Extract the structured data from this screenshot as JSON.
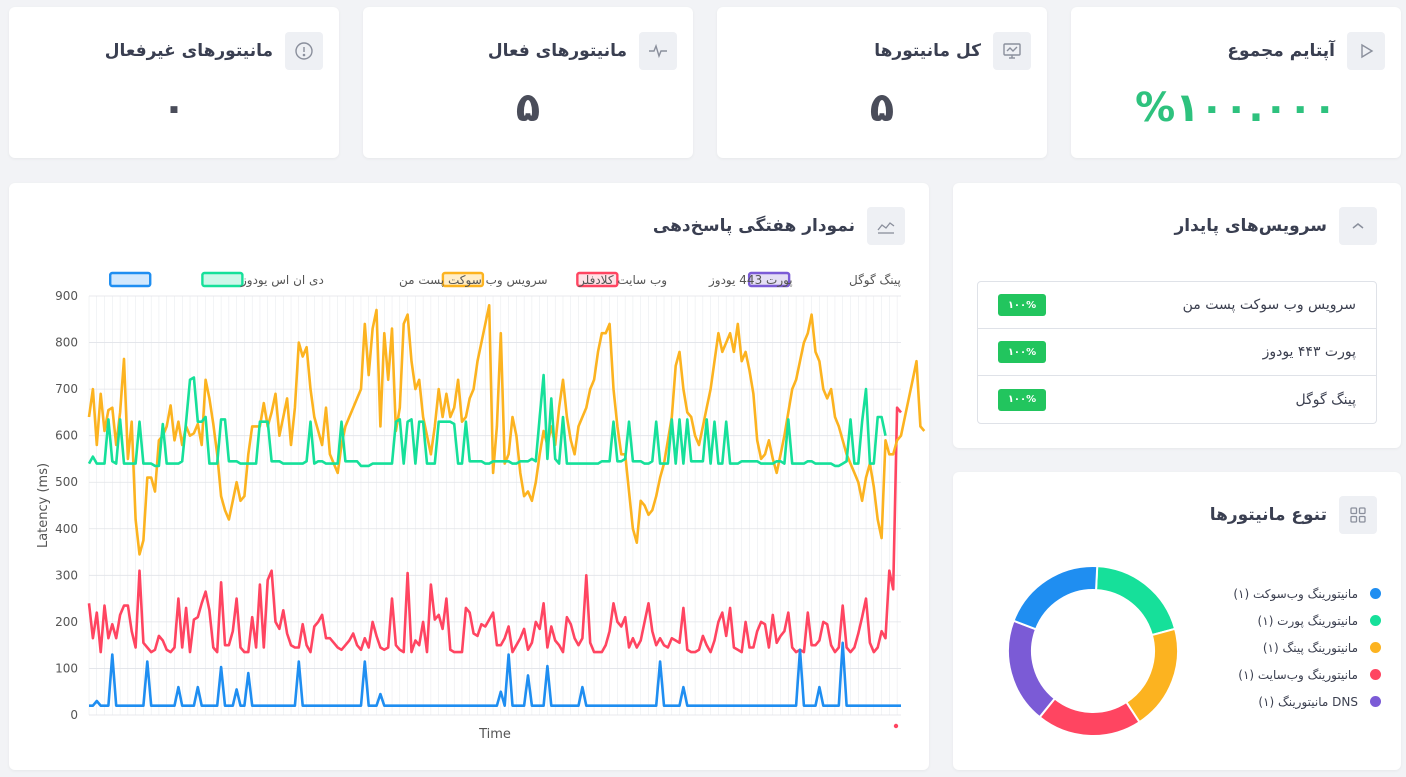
{
  "stats": [
    {
      "title": "آپتایم مجموع",
      "value": "%۱۰۰.۰۰۰",
      "icon": "play-icon"
    },
    {
      "title": "کل مانیتورها",
      "value": "۵",
      "icon": "monitor-icon"
    },
    {
      "title": "مانیتورهای فعال",
      "value": "۵",
      "icon": "pulse-icon"
    },
    {
      "title": "مانیتورهای غیرفعال",
      "value": "۰",
      "icon": "alert-circle-icon"
    }
  ],
  "stable_services": {
    "title": "سرویس‌های پایدار",
    "items": [
      {
        "name": "سرویس وب سوکت پست من",
        "badge": "۱۰۰%"
      },
      {
        "name": "پورت ۴۴۳ یودوز",
        "badge": "۱۰۰%"
      },
      {
        "name": "پینگ گوگل",
        "badge": "۱۰۰%"
      }
    ]
  },
  "diversity": {
    "title": "تنوع مانیتورها",
    "legend": [
      {
        "label": "مانیتورینگ وب‌سوکت (۱)",
        "color": "#1f8ef1"
      },
      {
        "label": "مانیتورینگ پورت (۱)",
        "color": "#16e09a"
      },
      {
        "label": "مانیتورینگ پینگ (۱)",
        "color": "#fcb320"
      },
      {
        "label": "مانیتورینگ وب‌سایت (۱)",
        "color": "#ff4561"
      },
      {
        "label": "DNS مانیتورینگ (۱)",
        "color": "#7b5bd6"
      }
    ],
    "donut_values": [
      1,
      1,
      1,
      1,
      1
    ]
  },
  "weekly_chart": {
    "title": "نمودار هفتگی پاسخ‌دهی"
  },
  "chart_data": {
    "type": "line",
    "xlabel": "Time",
    "ylabel": "Latency (ms)",
    "ylim": [
      0,
      900
    ],
    "yticks": [
      0,
      100,
      200,
      300,
      400,
      500,
      600,
      700,
      800,
      900
    ],
    "legend_position": "top",
    "grid": true,
    "points": 210,
    "series": [
      {
        "name": "دی ان اس یودوز",
        "color": "#1f8ef1",
        "base": 20,
        "spikes": [
          [
            2,
            30
          ],
          [
            6,
            130
          ],
          [
            15,
            115
          ],
          [
            23,
            60
          ],
          [
            28,
            60
          ],
          [
            34,
            103
          ],
          [
            38,
            55
          ],
          [
            41,
            90
          ],
          [
            54,
            115
          ],
          [
            71,
            115
          ],
          [
            75,
            45
          ],
          [
            106,
            50
          ],
          [
            108,
            130
          ],
          [
            113,
            85
          ],
          [
            118,
            105
          ],
          [
            127,
            60
          ],
          [
            147,
            115
          ],
          [
            153,
            60
          ],
          [
            183,
            140
          ],
          [
            188,
            60
          ],
          [
            194,
            155
          ]
        ]
      },
      {
        "name": "سرویس وب سوکت پست من",
        "color": "#16e09a",
        "samples": [
          540,
          555,
          540,
          540,
          540,
          635,
          545,
          540,
          635,
          540,
          540,
          540,
          540,
          630,
          540,
          540,
          540,
          535,
          535,
          625,
          540,
          540,
          540,
          540,
          545,
          630,
          720,
          725,
          630,
          630,
          640,
          540,
          540,
          540,
          635,
          635,
          545,
          545,
          545,
          540,
          540,
          540,
          540,
          540,
          630,
          630,
          630,
          545,
          545,
          545,
          540,
          540,
          540,
          540,
          540,
          540,
          545,
          630,
          540,
          545,
          545,
          540,
          540,
          540,
          540,
          630,
          545,
          545,
          545,
          545,
          535,
          535,
          535,
          540,
          540,
          540,
          540,
          540,
          540,
          630,
          635,
          540,
          630,
          635,
          540,
          630,
          630,
          540,
          540,
          540,
          630,
          630,
          630,
          630,
          625,
          540,
          540,
          630,
          545,
          545,
          545,
          545,
          540,
          540,
          545,
          545,
          545,
          545,
          545,
          540,
          540,
          545,
          545,
          545,
          550,
          545,
          640,
          730,
          550,
          680,
          550,
          540,
          640,
          540,
          540,
          540,
          540,
          540,
          540,
          540,
          540,
          540,
          545,
          545,
          545,
          630,
          545,
          545,
          550,
          630,
          545,
          545,
          545,
          540,
          540,
          545,
          630,
          540,
          540,
          540,
          635,
          540,
          635,
          540,
          635,
          545,
          545,
          545,
          545,
          635,
          540,
          630,
          540,
          540,
          630,
          540,
          540,
          540,
          545,
          545,
          545,
          545,
          545,
          540,
          540,
          540,
          540,
          545,
          545,
          540,
          635,
          540,
          540,
          540,
          540,
          545,
          545,
          540,
          540,
          540,
          540,
          540,
          535,
          535,
          540,
          545,
          635,
          540,
          540,
          630,
          700,
          540,
          540,
          640,
          640,
          600
        ]
      },
      {
        "name": "وب سایت کلادفلر",
        "color": "#fcb320",
        "samples": [
          640,
          700,
          580,
          690,
          610,
          655,
          660,
          580,
          650,
          765,
          550,
          630,
          420,
          345,
          375,
          510,
          510,
          480,
          590,
          600,
          620,
          665,
          590,
          630,
          580,
          620,
          600,
          605,
          625,
          580,
          720,
          680,
          625,
          560,
          470,
          440,
          420,
          460,
          500,
          460,
          470,
          560,
          620,
          620,
          620,
          670,
          620,
          650,
          690,
          600,
          640,
          680,
          580,
          660,
          800,
          770,
          790,
          700,
          640,
          610,
          580,
          660,
          560,
          540,
          520,
          580,
          620,
          640,
          660,
          680,
          700,
          840,
          730,
          830,
          870,
          620,
          820,
          720,
          830,
          610,
          660,
          840,
          860,
          760,
          700,
          720,
          640,
          600,
          560,
          620,
          700,
          640,
          690,
          640,
          660,
          720,
          630,
          640,
          680,
          700,
          760,
          800,
          840,
          880,
          520,
          620,
          820,
          540,
          560,
          640,
          600,
          520,
          470,
          480,
          460,
          500,
          560,
          610,
          580,
          620,
          580,
          660,
          720,
          640,
          590,
          560,
          620,
          640,
          660,
          700,
          720,
          780,
          820,
          820,
          840,
          700,
          620,
          560,
          560,
          480,
          400,
          370,
          460,
          450,
          430,
          440,
          470,
          510,
          540,
          590,
          640,
          750,
          780,
          700,
          650,
          640,
          600,
          580,
          620,
          660,
          700,
          760,
          820,
          780,
          800,
          820,
          780,
          840,
          760,
          780,
          740,
          690,
          590,
          550,
          560,
          590,
          550,
          520,
          560,
          600,
          650,
          700,
          720,
          760,
          800,
          820,
          860,
          780,
          760,
          700,
          680,
          700,
          640,
          620,
          590,
          560,
          540,
          520,
          500,
          460,
          510,
          540,
          490,
          420,
          380,
          590,
          560,
          560,
          590,
          600,
          640,
          680,
          720,
          760,
          620,
          610
        ]
      },
      {
        "name": "پورت 443 یودوز",
        "color": "#ff4561",
        "samples": [
          240,
          165,
          220,
          135,
          235,
          165,
          195,
          165,
          215,
          235,
          235,
          180,
          145,
          310,
          155,
          145,
          135,
          140,
          170,
          160,
          140,
          135,
          145,
          250,
          145,
          230,
          135,
          205,
          210,
          240,
          265,
          225,
          145,
          135,
          285,
          150,
          150,
          180,
          250,
          145,
          135,
          135,
          210,
          145,
          280,
          145,
          290,
          310,
          200,
          185,
          225,
          175,
          150,
          145,
          145,
          195,
          150,
          135,
          190,
          200,
          215,
          165,
          165,
          155,
          145,
          140,
          150,
          160,
          175,
          150,
          140,
          165,
          145,
          200,
          170,
          145,
          140,
          145,
          250,
          150,
          140,
          135,
          305,
          135,
          160,
          150,
          200,
          135,
          280,
          205,
          215,
          185,
          250,
          140,
          135,
          135,
          135,
          230,
          220,
          175,
          170,
          195,
          190,
          205,
          220,
          150,
          150,
          165,
          190,
          135,
          150,
          165,
          185,
          140,
          155,
          200,
          185,
          240,
          145,
          190,
          160,
          150,
          135,
          210,
          195,
          165,
          150,
          165,
          300,
          155,
          135,
          135,
          135,
          150,
          180,
          240,
          200,
          190,
          210,
          145,
          165,
          145,
          160,
          200,
          240,
          180,
          150,
          165,
          150,
          145,
          165,
          160,
          155,
          230,
          140,
          135,
          135,
          140,
          170,
          150,
          135,
          160,
          200,
          220,
          170,
          230,
          145,
          140,
          135,
          200,
          145,
          145,
          180,
          200,
          195,
          145,
          215,
          155,
          170,
          180,
          220,
          145,
          135,
          140,
          135,
          220,
          150,
          150,
          160,
          200,
          195,
          150,
          135,
          145,
          235,
          145,
          135,
          145,
          175,
          210,
          250,
          155,
          135,
          145,
          180,
          165,
          310,
          270,
          660,
          650
        ]
      }
    ]
  }
}
